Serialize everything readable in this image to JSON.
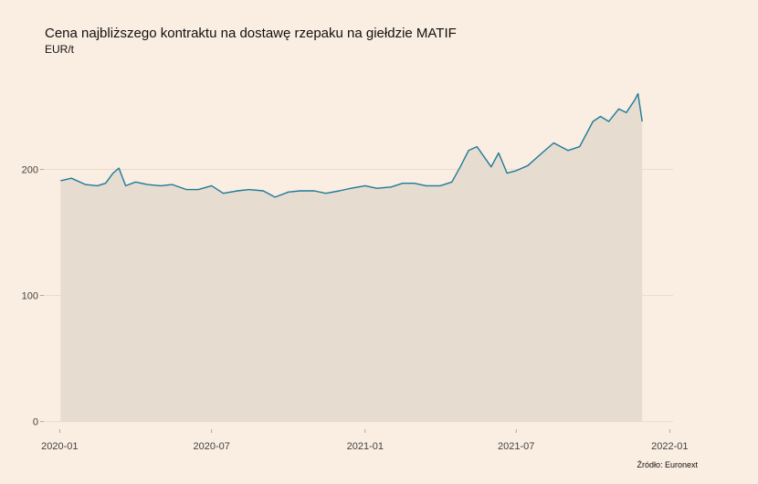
{
  "chart_data": {
    "type": "area",
    "title": "Cena najbliższego kontraktu na dostawę rzepaku na giełdzie MATIF",
    "subtitle": "EUR/t",
    "source": "Źródło: Euronext",
    "xlabel": "",
    "ylabel": "",
    "x_ticks": [
      "2020-01",
      "2020-07",
      "2021-01",
      "2021-07",
      "2022-01"
    ],
    "y_ticks": [
      0,
      100,
      200
    ],
    "xlim": [
      "2019-12-13",
      "2022-01-05"
    ],
    "ylim": [
      -6,
      280
    ],
    "grid": "horizontal",
    "colors": {
      "background": "#FAEDE1",
      "line": "#1F7A9A",
      "fill": "#E6DCD0",
      "grid": "#E3D6C8"
    },
    "x": [
      "2020-01-02",
      "2020-01-15",
      "2020-02-01",
      "2020-02-15",
      "2020-02-25",
      "2020-03-05",
      "2020-03-12",
      "2020-03-20",
      "2020-04-01",
      "2020-04-15",
      "2020-05-01",
      "2020-05-15",
      "2020-06-01",
      "2020-06-15",
      "2020-07-01",
      "2020-07-15",
      "2020-08-01",
      "2020-08-15",
      "2020-09-01",
      "2020-09-15",
      "2020-10-01",
      "2020-10-15",
      "2020-11-01",
      "2020-11-15",
      "2020-12-01",
      "2020-12-15",
      "2021-01-01",
      "2021-01-15",
      "2021-02-01",
      "2021-02-15",
      "2021-03-01",
      "2021-03-15",
      "2021-04-01",
      "2021-04-15",
      "2021-04-25",
      "2021-05-05",
      "2021-05-15",
      "2021-06-01",
      "2021-06-10",
      "2021-06-20",
      "2021-07-01",
      "2021-07-15",
      "2021-08-01",
      "2021-08-15",
      "2021-09-01",
      "2021-09-15",
      "2021-10-01",
      "2021-10-10",
      "2021-10-20",
      "2021-11-01",
      "2021-11-10",
      "2021-11-20",
      "2021-11-24",
      "2021-11-29"
    ],
    "values": [
      191,
      193,
      188,
      187,
      189,
      197,
      201,
      187,
      190,
      188,
      187,
      188,
      184,
      184,
      187,
      181,
      183,
      184,
      183,
      178,
      182,
      183,
      183,
      181,
      183,
      185,
      187,
      185,
      186,
      189,
      189,
      187,
      187,
      190,
      202,
      215,
      218,
      202,
      213,
      197,
      199,
      203,
      213,
      221,
      215,
      218,
      238,
      242,
      238,
      248,
      245,
      255,
      260,
      238
    ]
  }
}
